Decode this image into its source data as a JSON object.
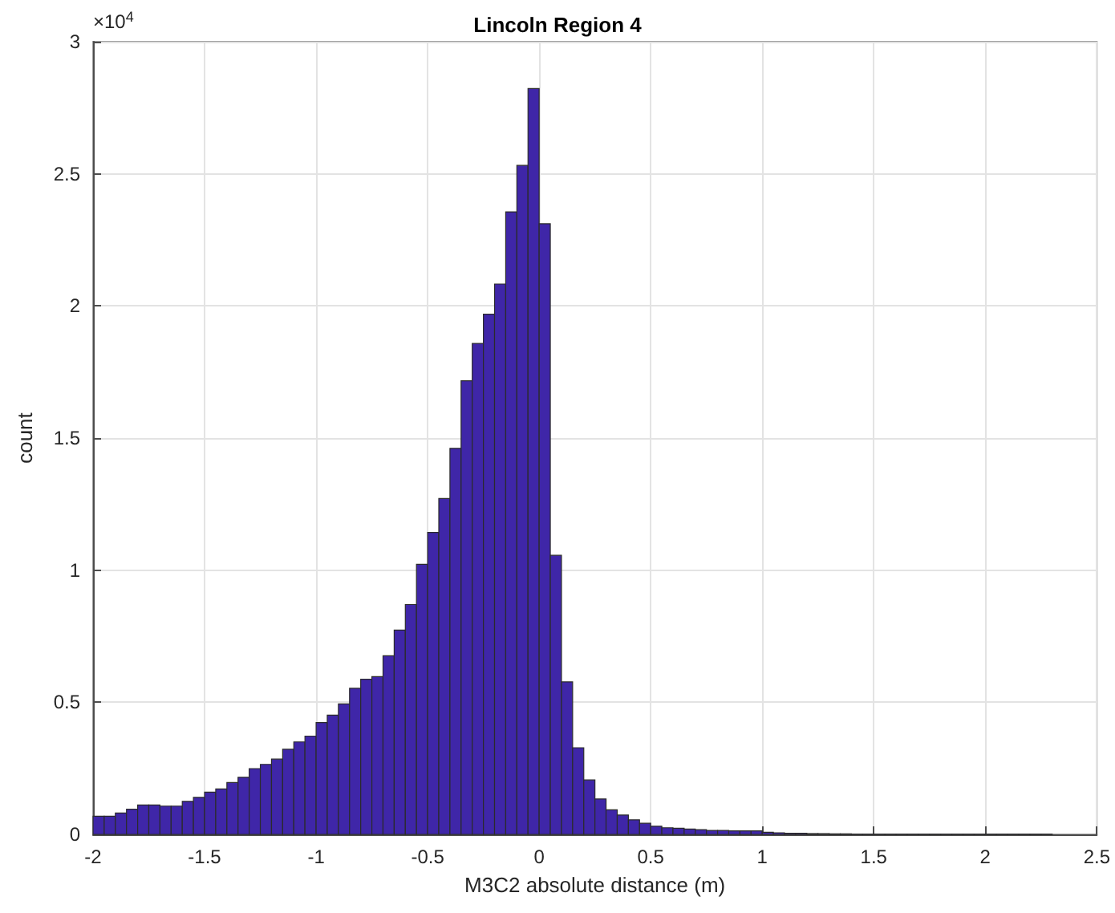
{
  "chart_data": {
    "type": "histogram",
    "title": "Lincoln Region 4",
    "xlabel": "M3C2 absolute distance (m)",
    "ylabel": "count",
    "annotations": [
      "×10$^{4}$"
    ],
    "bins": [
      -2,
      -1.95,
      -1.9,
      -1.85,
      -1.8,
      -1.75,
      -1.7,
      -1.65,
      -1.6,
      -1.55,
      -1.5,
      -1.45,
      -1.4,
      -1.35,
      -1.3,
      -1.25,
      -1.2,
      -1.15,
      -1.1,
      -1.05,
      -1,
      -0.95,
      -0.9,
      -0.85,
      -0.8,
      -0.75,
      -0.7,
      -0.65,
      -0.6,
      -0.55,
      -0.5,
      -0.45,
      -0.4,
      -0.35,
      -0.3,
      -0.25,
      -0.2,
      -0.15,
      -0.1,
      -0.05,
      0,
      0.05,
      0.1,
      0.15,
      0.2,
      0.25,
      0.3,
      0.35,
      0.4,
      0.45,
      0.5,
      0.55,
      0.6,
      0.65,
      0.7,
      0.75,
      0.8,
      0.85,
      0.9,
      0.95,
      1,
      1.05,
      1.1,
      1.15,
      1.2,
      1.25,
      1.3,
      1.35,
      1.4,
      1.45,
      1.5,
      1.55,
      1.6,
      1.65,
      1.7,
      1.75,
      1.8,
      1.85,
      1.9,
      1.95,
      2,
      2.05,
      2.1,
      2.15,
      2.2,
      2.25,
      2.3
    ],
    "values": [
      0.069,
      0.069,
      0.081,
      0.095,
      0.111,
      0.111,
      0.107,
      0.107,
      0.125,
      0.14,
      0.16,
      0.172,
      0.196,
      0.216,
      0.249,
      0.265,
      0.285,
      0.322,
      0.35,
      0.372,
      0.423,
      0.451,
      0.494,
      0.553,
      0.587,
      0.597,
      0.676,
      0.773,
      0.87,
      1.022,
      1.143,
      1.271,
      1.461,
      1.717,
      1.858,
      1.969,
      2.083,
      2.356,
      2.532,
      2.823,
      2.311,
      1.056,
      0.577,
      0.328,
      0.206,
      0.134,
      0.093,
      0.073,
      0.055,
      0.042,
      0.031,
      0.025,
      0.023,
      0.02,
      0.018,
      0.015,
      0.015,
      0.013,
      0.013,
      0.013,
      0.008,
      0.006,
      0.004,
      0.004,
      0.003,
      0.003,
      0.002,
      0.002,
      0.001,
      0.001,
      0.001,
      0.001,
      0.001,
      0.001,
      0.001,
      0.001,
      0.001,
      0.001,
      0.001,
      0.001,
      0.001,
      0.001,
      0.001,
      0.001,
      0.001,
      0.001
    ],
    "color": "#3f26a8",
    "xlim": [
      -2,
      2.5
    ],
    "xticks": [
      -2,
      -1.5,
      -1,
      -0.5,
      0,
      0.5,
      1,
      1.5,
      2,
      2.5
    ],
    "ylim": [
      0,
      3
    ],
    "yticks": [
      0,
      0.5,
      1,
      1.5,
      2,
      2.5,
      3
    ],
    "grid": true
  }
}
